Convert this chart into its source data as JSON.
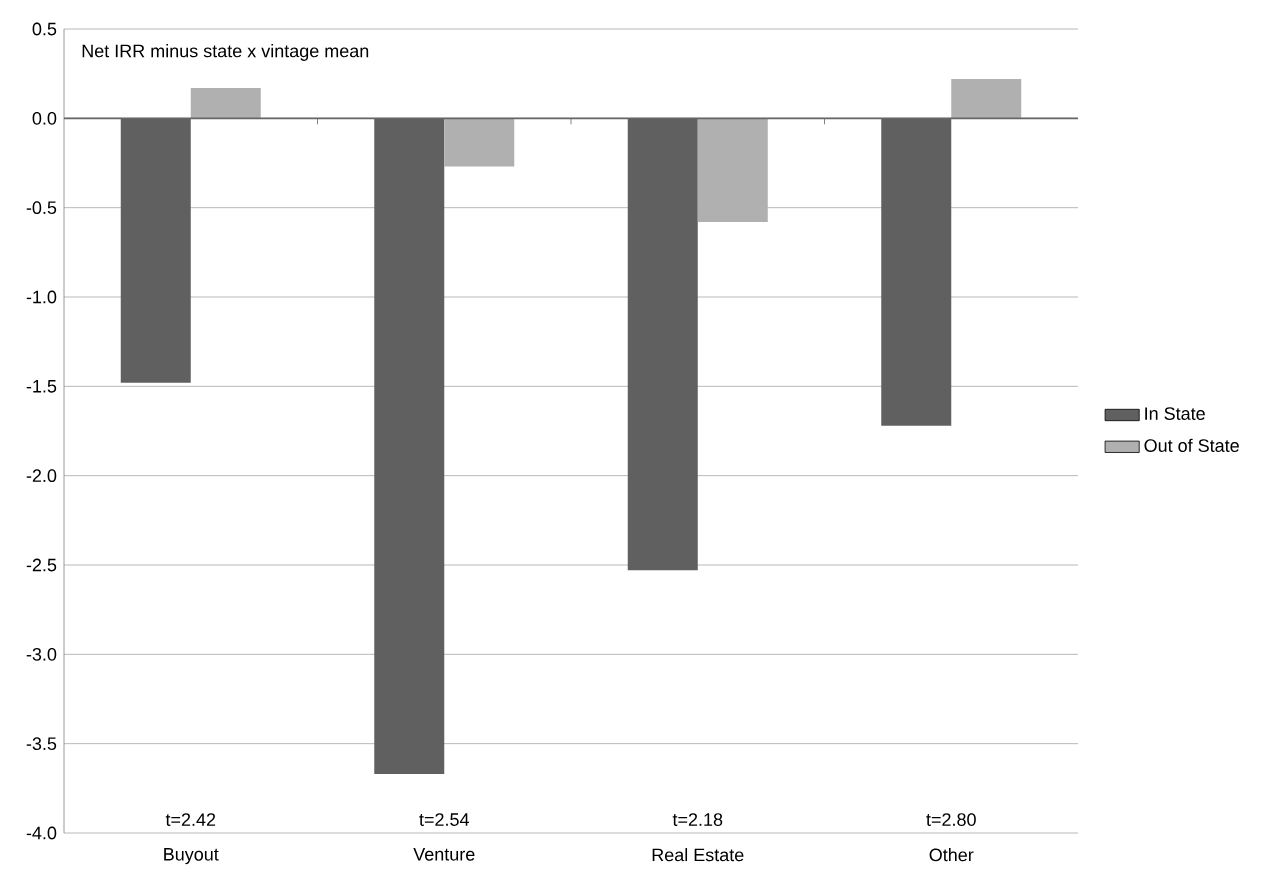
{
  "chart_data": {
    "type": "bar",
    "title": "Net IRR minus state x vintage mean",
    "categories": [
      "Buyout",
      "Venture",
      "Real Estate",
      "Other"
    ],
    "series": [
      {
        "name": "In State",
        "color": "#606060",
        "values": [
          -1.48,
          -3.67,
          -2.53,
          -1.72
        ]
      },
      {
        "name": "Out of State",
        "color": "#b0b0b0",
        "values": [
          0.17,
          -0.27,
          -0.58,
          0.22
        ]
      }
    ],
    "ylim": [
      -4,
      0.5
    ],
    "yticks": [
      {
        "value": -4,
        "label": "-4.0"
      },
      -3.5,
      {
        "value": -3,
        "label": "-3.0"
      },
      -2.5,
      {
        "value": -2,
        "label": "-2.0"
      },
      -1.5,
      {
        "value": -1,
        "label": "-1.0"
      },
      -0.5,
      {
        "value": 0,
        "label": "0.0"
      },
      0.5
    ],
    "grid": "y",
    "legend": "right",
    "annotations": [
      "t=2.42",
      "t=2.54",
      "t=2.18",
      "t=2.80"
    ]
  }
}
